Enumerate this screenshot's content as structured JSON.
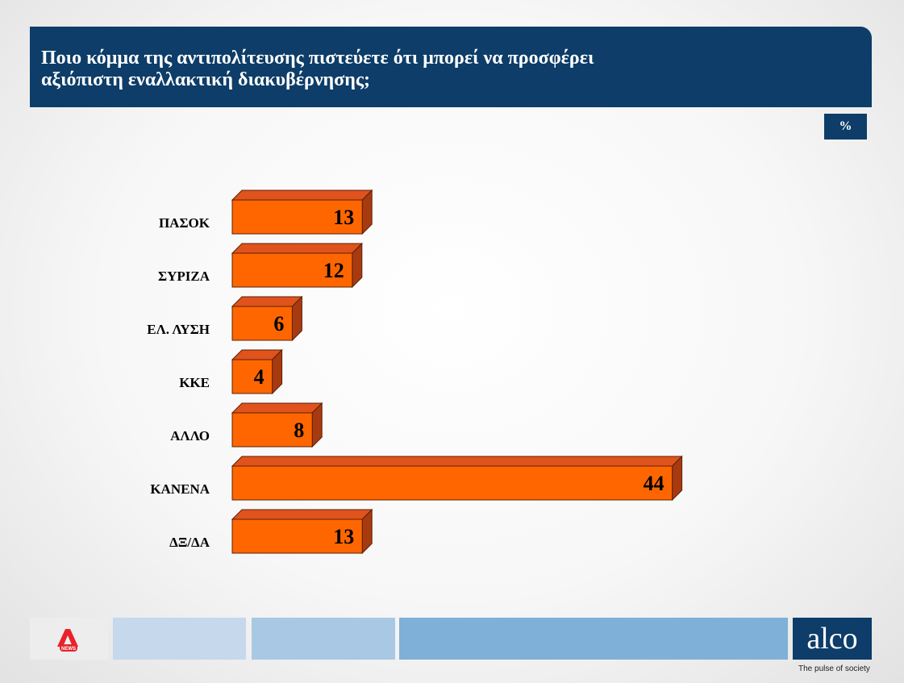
{
  "header": {
    "title": "Ποιο κόμμα της αντιπολίτευσης πιστεύετε ότι μπορεί να προσφέρει\nαξιόπιστη εναλλακτική διακυβέρνησης;"
  },
  "unit_badge": "%",
  "colors": {
    "header": "#0d3d68",
    "bar_front": "#ff6600",
    "bar_top": "#e0531c",
    "bar_side": "#a83a10"
  },
  "chart_data": {
    "type": "bar",
    "orientation": "horizontal",
    "style": "3d",
    "categories": [
      "ΠΑΣΟΚ",
      "ΣΥΡΙΖΑ",
      "ΕΛ. ΛΥΣΗ",
      "ΚΚΕ",
      "ΑΛΛΟ",
      "ΚΑΝΕΝΑ",
      "ΔΞ/ΔΑ"
    ],
    "values": [
      13,
      12,
      6,
      4,
      8,
      44,
      13
    ],
    "unit": "%",
    "title": "",
    "xlabel": "",
    "ylabel": "",
    "grid": false,
    "legend": "none"
  },
  "footer": {
    "left_logo_icon": "alpha-news-logo",
    "brand": "alco",
    "tagline": "The pulse of society"
  }
}
